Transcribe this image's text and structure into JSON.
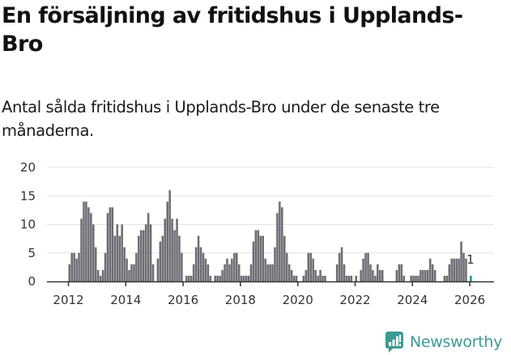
{
  "header": {
    "title": "En försäljning av fritidshus i Upplands-Bro",
    "subtitle": "Antal sålda fritidshus i Upplands-Bro under de senaste tre månaderna."
  },
  "logo": {
    "text": "Newsworthy",
    "icon": "newsworthy-chart-bubble-icon",
    "color": "#3d9b94"
  },
  "colors": {
    "bar": "#6e6d73",
    "highlight": "#1a9e8c",
    "grid": "#e3e3e3",
    "axis": "#333333"
  },
  "chart_data": {
    "type": "bar",
    "title": "En försäljning av fritidshus i Upplands-Bro",
    "subtitle": "Antal sålda fritidshus i Upplands-Bro under de senaste tre månaderna.",
    "xlabel": "",
    "ylabel": "",
    "ylim": [
      0,
      20
    ],
    "yticks": [
      0,
      5,
      10,
      15,
      20
    ],
    "xticks": [
      "2012",
      "2014",
      "2016",
      "2018",
      "2020",
      "2022",
      "2024",
      "2026"
    ],
    "grid": true,
    "legend": null,
    "frequency": "monthly",
    "start": "2012-01",
    "annotation": {
      "label": "1",
      "target": "last"
    },
    "series": [
      {
        "name": "Antal sålda fritidshus",
        "values": [
          3,
          5,
          5,
          4,
          5,
          11,
          14,
          14,
          13,
          12,
          10,
          6,
          2,
          1,
          2,
          5,
          12,
          13,
          13,
          8,
          10,
          8,
          10,
          6,
          4,
          2,
          3,
          3,
          5,
          8,
          9,
          9,
          10,
          12,
          10,
          3,
          0,
          4,
          7,
          8,
          11,
          14,
          16,
          11,
          9,
          11,
          8,
          5,
          0,
          1,
          1,
          1,
          3,
          6,
          8,
          6,
          5,
          4,
          3,
          1,
          0,
          1,
          1,
          1,
          2,
          3,
          4,
          3,
          4,
          5,
          5,
          3,
          1,
          1,
          1,
          1,
          3,
          7,
          9,
          9,
          8,
          8,
          4,
          3,
          3,
          3,
          6,
          12,
          14,
          13,
          8,
          5,
          3,
          2,
          1,
          1,
          0,
          0,
          1,
          2,
          5,
          5,
          4,
          2,
          1,
          2,
          1,
          1,
          0,
          0,
          0,
          0,
          3,
          5,
          6,
          3,
          1,
          1,
          1,
          0,
          1,
          0,
          2,
          4,
          5,
          5,
          3,
          2,
          1,
          3,
          2,
          2,
          0,
          0,
          0,
          0,
          0,
          2,
          3,
          3,
          1,
          0,
          0,
          1,
          1,
          1,
          1,
          2,
          2,
          2,
          2,
          4,
          3,
          2,
          0,
          0,
          0,
          1,
          1,
          3,
          4,
          4,
          4,
          4,
          7,
          5,
          4,
          0,
          1
        ]
      }
    ]
  }
}
